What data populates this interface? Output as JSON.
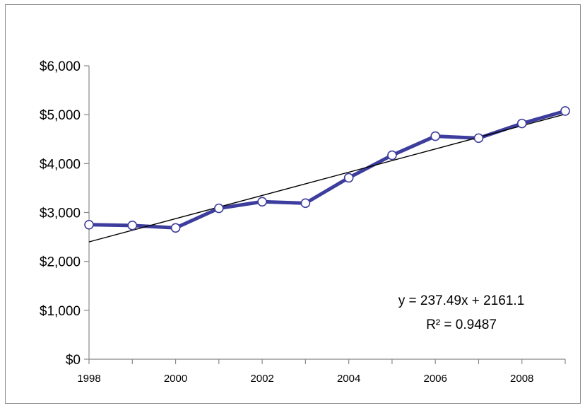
{
  "chart_data": {
    "type": "line",
    "title": "",
    "xlabel": "",
    "ylabel": "",
    "x": [
      1998,
      1999,
      2000,
      2001,
      2002,
      2003,
      2004,
      2005,
      2006,
      2007,
      2008,
      2009
    ],
    "series": [
      {
        "values": [
          2750,
          2735,
          2685,
          3085,
          3220,
          3190,
          3710,
          4170,
          4560,
          4520,
          4820,
          5075
        ],
        "color": "#3d3d9e"
      }
    ],
    "trendline": {
      "type": "linear",
      "slope": 237.49,
      "intercept": 2161.1,
      "color": "#000000",
      "equation_label": "y = 237.49x + 2161.1",
      "r2_label": "R² = 0.9487"
    },
    "ylim": [
      0,
      6000
    ],
    "xlim": [
      1998,
      2009
    ],
    "y_ticks": [
      0,
      1000,
      2000,
      3000,
      4000,
      5000,
      6000
    ],
    "y_tick_labels": [
      "$0",
      "$1,000",
      "$2,000",
      "$3,000",
      "$4,000",
      "$5,000",
      "$6,000"
    ],
    "x_ticks": [
      1998,
      2000,
      2002,
      2004,
      2006,
      2008
    ],
    "x_tick_labels": [
      "1998",
      "2000",
      "2002",
      "2004",
      "2006",
      "2008"
    ],
    "grid": false,
    "legend": false
  }
}
